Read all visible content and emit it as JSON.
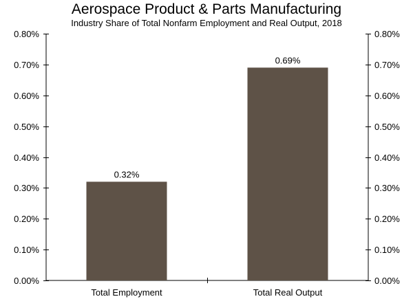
{
  "chart_data": {
    "type": "bar",
    "title": "Aerospace Product & Parts Manufacturing",
    "subtitle": "Industry Share of Total Nonfarm Employment and Real Output, 2018",
    "categories": [
      "Total Employment",
      "Total Real Output"
    ],
    "values": [
      0.32,
      0.69
    ],
    "data_labels": [
      "0.32%",
      "0.69%"
    ],
    "ylim": [
      0,
      0.8
    ],
    "yticks": [
      0,
      0.1,
      0.2,
      0.3,
      0.4,
      0.5,
      0.6,
      0.7,
      0.8
    ],
    "ytick_labels": [
      "0.00%",
      "0.10%",
      "0.20%",
      "0.30%",
      "0.40%",
      "0.50%",
      "0.60%",
      "0.70%",
      "0.80%"
    ],
    "xlabel": "",
    "ylabel": "",
    "secondary_y_axis": true,
    "grid": false,
    "bar_color": "#5e5247",
    "axis_color": "#000000"
  }
}
